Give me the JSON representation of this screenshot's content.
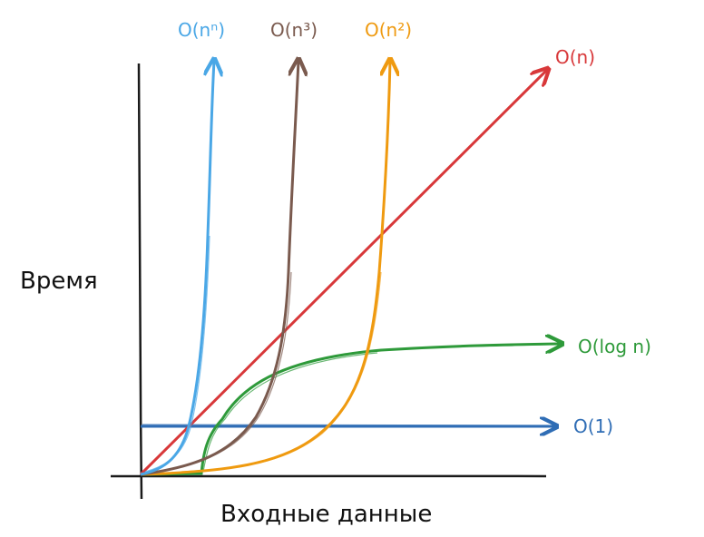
{
  "diagram": {
    "ylabel": "Время",
    "xlabel": "Входные данные",
    "curves": [
      {
        "id": "o-1",
        "label": "O(1)",
        "color": "#2f6db5"
      },
      {
        "id": "o-log-n",
        "label": "O(log n)",
        "color": "#2e9a3a"
      },
      {
        "id": "o-n",
        "label": "O(n)",
        "color": "#d8383a"
      },
      {
        "id": "o-n2",
        "label": "O(n²)",
        "color": "#ef9a10"
      },
      {
        "id": "o-n3",
        "label": "O(n³)",
        "color": "#7a5a4e"
      },
      {
        "id": "o-nn",
        "label": "O(nⁿ)",
        "color": "#4aa7e6"
      }
    ]
  }
}
